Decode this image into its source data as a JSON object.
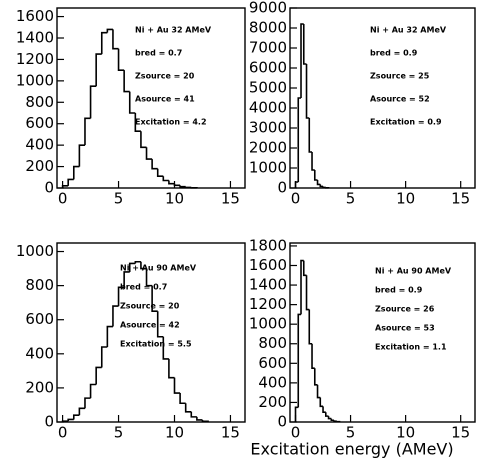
{
  "chart_data": [
    {
      "type": "histogram",
      "color": "#000000",
      "annotations": [
        "Ni + Au 32 AMeV",
        "bred = 0.7",
        "Zsource = 20",
        "Asource = 41",
        "Excitation = 4.2"
      ],
      "bins": [
        0,
        0.5,
        1,
        1.5,
        2,
        2.5,
        3,
        3.5,
        4,
        4.5,
        5,
        5.5,
        6,
        6.5,
        7,
        7.5,
        8,
        8.5,
        9,
        9.5,
        10,
        10.5,
        11,
        11.5,
        12
      ],
      "values": [
        20,
        80,
        200,
        400,
        650,
        950,
        1250,
        1450,
        1480,
        1300,
        1100,
        900,
        700,
        530,
        380,
        270,
        180,
        110,
        70,
        40,
        25,
        12,
        5,
        2
      ],
      "xlim": [
        -0.5,
        16.3
      ],
      "ylim": [
        0,
        1680
      ],
      "xticks": [
        0,
        5,
        10,
        15
      ],
      "yticks": [
        0,
        200,
        400,
        600,
        800,
        1000,
        1200,
        1400,
        1600
      ]
    },
    {
      "type": "histogram",
      "color": "#000000",
      "annotations": [
        "Ni + Au 32 AMeV",
        "bred = 0.9",
        "Zsource = 25",
        "Asource = 52",
        "Excitation = 0.9"
      ],
      "bins": [
        0,
        0.25,
        0.5,
        0.75,
        1,
        1.25,
        1.5,
        1.75,
        2,
        2.25,
        2.5,
        2.75,
        3
      ],
      "values": [
        300,
        4500,
        8200,
        6200,
        3500,
        1800,
        900,
        400,
        180,
        80,
        30,
        10
      ],
      "xlim": [
        -0.5,
        16.3
      ],
      "ylim": [
        0,
        9000
      ],
      "xticks": [
        0,
        5,
        10,
        15
      ],
      "yticks": [
        0,
        1000,
        2000,
        3000,
        4000,
        5000,
        6000,
        7000,
        8000,
        9000
      ]
    },
    {
      "type": "histogram",
      "color": "#000000",
      "annotations": [
        "Ni + Au 90 AMeV",
        "bred = 0.7",
        "Zsource = 20",
        "Asource = 42",
        "Excitation = 5.5"
      ],
      "bins": [
        0,
        0.5,
        1,
        1.5,
        2,
        2.5,
        3,
        3.5,
        4,
        4.5,
        5,
        5.5,
        6,
        6.5,
        7,
        7.5,
        8,
        8.5,
        9,
        9.5,
        10,
        10.5,
        11,
        11.5,
        12,
        12.5,
        13
      ],
      "values": [
        5,
        15,
        40,
        80,
        140,
        220,
        320,
        440,
        560,
        680,
        790,
        880,
        930,
        940,
        900,
        800,
        650,
        500,
        370,
        260,
        170,
        110,
        60,
        30,
        12,
        4
      ],
      "xlim": [
        -0.5,
        16.3
      ],
      "ylim": [
        0,
        1050
      ],
      "xticks": [
        0,
        5,
        10,
        15
      ],
      "yticks": [
        0,
        200,
        400,
        600,
        800,
        1000
      ]
    },
    {
      "type": "histogram",
      "color": "#000000",
      "annotations": [
        "Ni + Au 90 AMeV",
        "bred = 0.9",
        "Zsource = 26",
        "Asource = 53",
        "Excitation = 1.1"
      ],
      "bins": [
        0,
        0.25,
        0.5,
        0.75,
        1,
        1.25,
        1.5,
        1.75,
        2,
        2.25,
        2.5,
        2.75,
        3,
        3.25,
        3.5,
        3.75,
        4
      ],
      "values": [
        150,
        1100,
        1650,
        1500,
        1150,
        800,
        550,
        380,
        250,
        160,
        100,
        60,
        35,
        18,
        8,
        3
      ],
      "xlim": [
        -0.5,
        16.3
      ],
      "ylim": [
        0,
        1830
      ],
      "xticks": [
        0,
        5,
        10,
        15
      ],
      "yticks": [
        0,
        200,
        400,
        600,
        800,
        1000,
        1200,
        1400,
        1600,
        1800
      ],
      "xlabel": "Excitation energy (AMeV)"
    }
  ]
}
